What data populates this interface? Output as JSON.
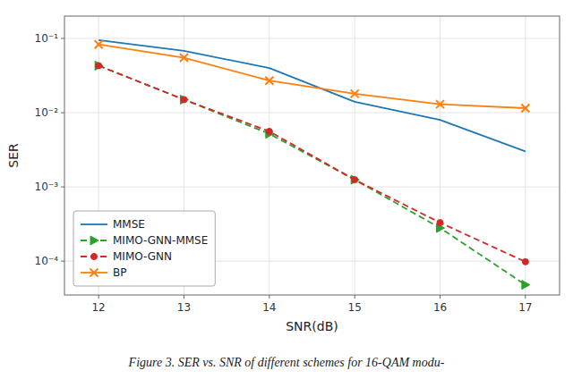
{
  "chart_data": {
    "type": "line",
    "xlabel": "SNR(dB)",
    "ylabel": "SER",
    "caption": "Figure 3. SER vs. SNR of different schemes for 16-QAM modu-",
    "x": [
      12,
      13,
      14,
      15,
      16,
      17
    ],
    "series": [
      {
        "name": "MMSE",
        "color": "#1f77b4",
        "marker": "none",
        "line_style": "solid",
        "values": [
          0.095,
          0.068,
          0.04,
          0.014,
          0.008,
          0.003
        ]
      },
      {
        "name": "MIMO-GNN-MMSE",
        "color": "#2ca02c",
        "marker": "triangle-right",
        "line_style": "dashed",
        "values": [
          0.043,
          0.015,
          0.0052,
          0.00125,
          0.00028,
          4.8e-05
        ]
      },
      {
        "name": "MIMO-GNN",
        "color": "#d62728",
        "marker": "circle",
        "line_style": "dashed",
        "values": [
          0.043,
          0.015,
          0.0056,
          0.00125,
          0.00033,
          9.8e-05
        ]
      },
      {
        "name": "BP",
        "color": "#ff7f0e",
        "marker": "x",
        "line_style": "solid",
        "values": [
          0.083,
          0.055,
          0.027,
          0.018,
          0.013,
          0.0115
        ]
      }
    ],
    "xlim": [
      11.6,
      17.4
    ],
    "xticks": [
      12,
      13,
      14,
      15,
      16,
      17
    ],
    "ylim": [
      3.5e-05,
      0.2
    ],
    "yticks": [
      {
        "value": 0.0001,
        "label": "10⁻⁴"
      },
      {
        "value": 0.001,
        "label": "10⁻³"
      },
      {
        "value": 0.01,
        "label": "10⁻²"
      },
      {
        "value": 0.1,
        "label": "10⁻¹"
      }
    ],
    "log": "y",
    "grid": true,
    "legend": "lower left"
  }
}
